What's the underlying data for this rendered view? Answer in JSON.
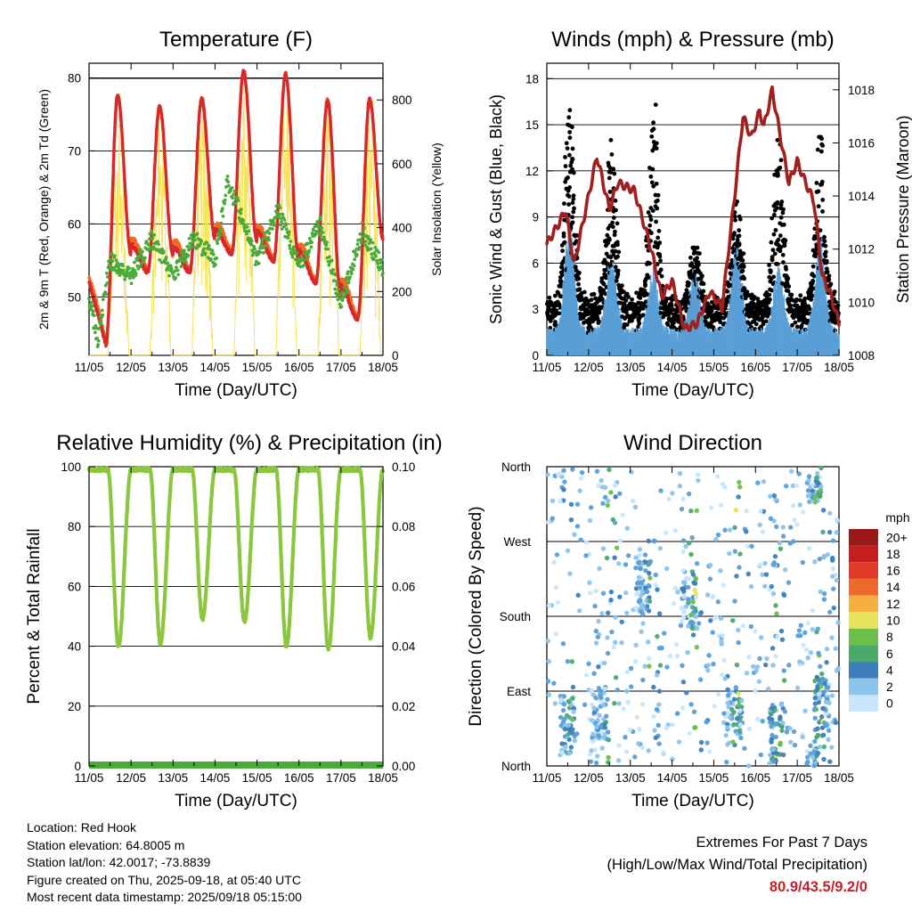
{
  "x_tick_labels": [
    "11/05",
    "12/05",
    "13/05",
    "14/05",
    "15/05",
    "16/05",
    "17/05",
    "18/05"
  ],
  "x_axis_label": "Time (Day/UTC)",
  "info": {
    "location": "Location: Red Hook",
    "elevation": "Station elevation: 64.8005 m",
    "latlon": "Station lat/lon: 42.0017; -73.8839",
    "created": "Figure created on Thu, 2025-09-18, at 05:40 UTC",
    "recent": "Most recent data timestamp: 2025/09/18 05:15:00"
  },
  "extremes": {
    "title": "Extremes For Past 7 Days",
    "subtitle": "(High/Low/Max Wind/Total Precipitation)",
    "values": "80.9/43.5/9.2/0"
  },
  "colors": {
    "temp_2m": "#d7282a",
    "temp_9m": "#f26a21",
    "dewpoint": "#4aaa3a",
    "solar": "#f3e04a",
    "wind": "#5a9fd6",
    "gust": "#000000",
    "pressure": "#a02020",
    "rh": "#8cc63f",
    "precip": "#4aaa3a",
    "speed_scale": [
      "#c8e6fa",
      "#8cc4ec",
      "#5a9fd6",
      "#3c7fba",
      "#4aaa6a",
      "#6cc04a",
      "#e6e45a",
      "#f5b041",
      "#ee6a2a",
      "#e03a28",
      "#c41e1e",
      "#9a1818"
    ]
  },
  "chart_data": [
    {
      "type": "line",
      "title": "Temperature (F)",
      "xlabel": "Time (Day/UTC)",
      "ylabel": "2m & 9m T (Red, Orange) & 2m Td (Green)",
      "y2label": "Solar Insolation (Yellow)",
      "x": [
        "11/05",
        "12/05",
        "13/05",
        "14/05",
        "15/05",
        "16/05",
        "17/05",
        "18/05"
      ],
      "xlim": [
        0,
        7
      ],
      "ylim": [
        42,
        82
      ],
      "yticks": [
        50,
        60,
        70,
        80
      ],
      "y2lim": [
        0,
        915
      ],
      "y2ticks": [
        0,
        200,
        400,
        600,
        800
      ],
      "daily_high_F": [
        77.5,
        76,
        77,
        80.9,
        80.5,
        77,
        77
      ],
      "daily_low_F": [
        43.5,
        53.5,
        53.5,
        56,
        55,
        52,
        47
      ],
      "dewpoint_F": [
        [
          0,
          50
        ],
        [
          0.2,
          44
        ],
        [
          0.5,
          55
        ],
        [
          1,
          53
        ],
        [
          1.5,
          58
        ],
        [
          2,
          53
        ],
        [
          2.5,
          58
        ],
        [
          3,
          55
        ],
        [
          3.3,
          66
        ],
        [
          4,
          55
        ],
        [
          4.5,
          62
        ],
        [
          5,
          54
        ],
        [
          5.5,
          60
        ],
        [
          6,
          49
        ],
        [
          6.5,
          59
        ],
        [
          7,
          54
        ]
      ],
      "solar_peak_Wm2": [
        730,
        760,
        890,
        880,
        860,
        880,
        850
      ],
      "series": [
        {
          "name": "2m T",
          "color": "#d7282a"
        },
        {
          "name": "9m T",
          "color": "#f26a21"
        },
        {
          "name": "2m Td",
          "color": "#4aaa3a"
        },
        {
          "name": "Solar Insolation",
          "color": "#f3e04a",
          "axis": "right"
        }
      ]
    },
    {
      "type": "scatter",
      "title": "Winds (mph) & Pressure (mb)",
      "xlabel": "Time (Day/UTC)",
      "ylabel": "Sonic Wind & Gust (Blue, Black)",
      "y2label": "Station Pressure (Maroon)",
      "x": [
        "11/05",
        "12/05",
        "13/05",
        "14/05",
        "15/05",
        "16/05",
        "17/05",
        "18/05"
      ],
      "xlim": [
        0,
        7
      ],
      "ylim": [
        0,
        19
      ],
      "yticks": [
        0,
        3,
        6,
        9,
        12,
        15,
        18
      ],
      "y2lim": [
        1008,
        1019
      ],
      "y2ticks": [
        1008,
        1010,
        1012,
        1014,
        1016,
        1018
      ],
      "daily_max_gust_mph": [
        17.2,
        14,
        16.3,
        7,
        10,
        14,
        14.2
      ],
      "daily_max_wind_mph": [
        9.2,
        7,
        6,
        6,
        8,
        6,
        8
      ],
      "pressure_mb": [
        [
          0,
          1012.2
        ],
        [
          0.3,
          1013
        ],
        [
          0.45,
          1013.5
        ],
        [
          0.65,
          1011.4
        ],
        [
          1,
          1014
        ],
        [
          1.2,
          1015.5
        ],
        [
          1.5,
          1013.5
        ],
        [
          1.7,
          1014.5
        ],
        [
          2.1,
          1014.2
        ],
        [
          2.5,
          1012
        ],
        [
          2.75,
          1010.2
        ],
        [
          3,
          1010.8
        ],
        [
          3.3,
          1009
        ],
        [
          3.6,
          1009.2
        ],
        [
          3.9,
          1010.4
        ],
        [
          4.2,
          1009.8
        ],
        [
          4.5,
          1014
        ],
        [
          4.7,
          1017
        ],
        [
          4.9,
          1016.2
        ],
        [
          5.1,
          1017.2
        ],
        [
          5.2,
          1016.6
        ],
        [
          5.4,
          1018
        ],
        [
          5.6,
          1016.2
        ],
        [
          5.8,
          1014.5
        ],
        [
          6,
          1015.3
        ],
        [
          6.2,
          1014.5
        ],
        [
          6.4,
          1013.8
        ],
        [
          6.6,
          1011
        ],
        [
          6.8,
          1010.3
        ],
        [
          7,
          1009.2
        ]
      ],
      "series": [
        {
          "name": "Sonic Wind",
          "color": "#5a9fd6"
        },
        {
          "name": "Gust",
          "color": "#000000"
        },
        {
          "name": "Station Pressure",
          "color": "#a02020",
          "axis": "right"
        }
      ]
    },
    {
      "type": "line",
      "title": "Relative Humidity (%) & Precipitation (in)",
      "xlabel": "Time (Day/UTC)",
      "ylabel": "Percent & Total Rainfall",
      "x": [
        "11/05",
        "12/05",
        "13/05",
        "14/05",
        "15/05",
        "16/05",
        "17/05",
        "18/05"
      ],
      "xlim": [
        0,
        7
      ],
      "ylim": [
        0,
        100
      ],
      "yticks": [
        0,
        20,
        40,
        60,
        80,
        100
      ],
      "y2lim": [
        0,
        0.1
      ],
      "y2ticks": [
        "0.00",
        "0.02",
        "0.04",
        "0.06",
        "0.08",
        "0.10"
      ],
      "daily_min_rh_pct": [
        40,
        41,
        49,
        48,
        40,
        39,
        43
      ],
      "max_rh_pct": 99,
      "total_precipitation_in": 0,
      "series": [
        {
          "name": "Relative Humidity",
          "color": "#8cc63f"
        },
        {
          "name": "Precipitation",
          "color": "#4aaa3a",
          "axis": "right"
        }
      ]
    },
    {
      "type": "scatter",
      "title": "Wind Direction",
      "xlabel": "Time (Day/UTC)",
      "ylabel": "Direction (Colored By Speed)",
      "x": [
        "11/05",
        "12/05",
        "13/05",
        "14/05",
        "15/05",
        "16/05",
        "17/05",
        "18/05"
      ],
      "xlim": [
        0,
        7
      ],
      "y_categories": [
        "North",
        "East",
        "South",
        "West",
        "North"
      ],
      "ylim": [
        0,
        360
      ],
      "colorbar": {
        "unit": "mph",
        "labels": [
          "20+",
          "18",
          "16",
          "14",
          "12",
          "10",
          "8",
          "6",
          "4",
          "2",
          "0"
        ]
      }
    }
  ]
}
